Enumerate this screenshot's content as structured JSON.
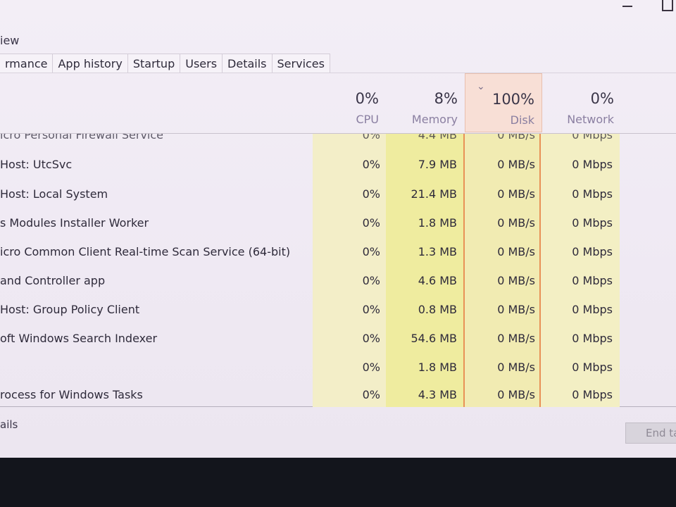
{
  "window": {
    "controls": [
      {
        "name": "minimize-icon"
      },
      {
        "name": "maximize-icon"
      }
    ]
  },
  "menu": {
    "view_label": "iew"
  },
  "tabs": [
    {
      "label": "rmance"
    },
    {
      "label": "App history"
    },
    {
      "label": "Startup"
    },
    {
      "label": "Users"
    },
    {
      "label": "Details"
    },
    {
      "label": "Services"
    }
  ],
  "columns": {
    "cpu": {
      "percent": "0%",
      "label": "CPU"
    },
    "memory": {
      "percent": "8%",
      "label": "Memory"
    },
    "disk": {
      "percent": "100%",
      "label": "Disk",
      "sort_icon": "chevron-down-icon"
    },
    "network": {
      "percent": "0%",
      "label": "Network"
    }
  },
  "rows": [
    {
      "name": "icro Personal Firewall Service",
      "cpu": "0%",
      "memory": "4.4 MB",
      "disk": "0 MB/s",
      "network": "0 Mbps",
      "partial": true
    },
    {
      "name": "Host: UtcSvc",
      "cpu": "0%",
      "memory": "7.9 MB",
      "disk": "0 MB/s",
      "network": "0 Mbps"
    },
    {
      "name": "Host: Local System",
      "cpu": "0%",
      "memory": "21.4 MB",
      "disk": "0 MB/s",
      "network": "0 Mbps"
    },
    {
      "name": "s Modules Installer Worker",
      "cpu": "0%",
      "memory": "1.8 MB",
      "disk": "0 MB/s",
      "network": "0 Mbps"
    },
    {
      "name": "icro Common Client Real-time Scan Service (64-bit)",
      "cpu": "0%",
      "memory": "1.3 MB",
      "disk": "0 MB/s",
      "network": "0 Mbps"
    },
    {
      "name": "and Controller app",
      "cpu": "0%",
      "memory": "4.6 MB",
      "disk": "0 MB/s",
      "network": "0 Mbps"
    },
    {
      "name": "Host: Group Policy Client",
      "cpu": "0%",
      "memory": "0.8 MB",
      "disk": "0 MB/s",
      "network": "0 Mbps"
    },
    {
      "name": "oft Windows Search Indexer",
      "cpu": "0%",
      "memory": "54.6 MB",
      "disk": "0 MB/s",
      "network": "0 Mbps"
    },
    {
      "name": "",
      "cpu": "0%",
      "memory": "1.8 MB",
      "disk": "0 MB/s",
      "network": "0 Mbps"
    },
    {
      "name": "rocess for Windows Tasks",
      "cpu": "0%",
      "memory": "4.3 MB",
      "disk": "0 MB/s",
      "network": "0 Mbps"
    }
  ],
  "footer": {
    "fewer_details": "ails",
    "end_task": "End ta"
  }
}
